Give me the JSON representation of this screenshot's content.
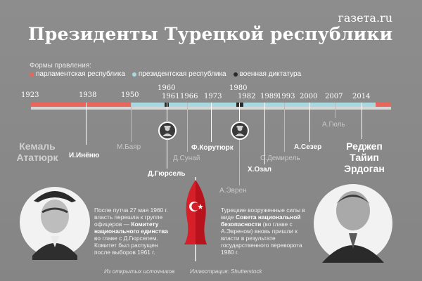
{
  "brand": "газета.ru",
  "title": "Президенты Турецкой республики",
  "legend": {
    "heading": "Формы правления:",
    "items": [
      {
        "label": "парламентская республика",
        "color": "#e8675a"
      },
      {
        "label": "президентская республика",
        "color": "#a8d8e0"
      },
      {
        "label": "военная диктатура",
        "color": "#2a2a2a"
      }
    ]
  },
  "years": [
    "1923",
    "1938",
    "1950",
    "1960",
    "1961",
    "1966",
    "1973",
    "1980",
    "1982",
    "1989",
    "1993",
    "2000",
    "2007",
    "2014"
  ],
  "presidents": {
    "ataturk": "Кемаль Ататюрк",
    "inonu": "И.Инёню",
    "bayar": "М.Баяр",
    "gursel": "Д.Гюрсель",
    "sunay": "Д.Сунай",
    "koruturk": "Ф.Корутюрк",
    "evren": "А.Эврен",
    "ozal": "Х.Озал",
    "demirel": "С.Демирель",
    "sezer": "А.Сезер",
    "gul": "А.Гюль",
    "erdogan": "Реджеп Тайип Эрдоган"
  },
  "notes": {
    "n1960_a": "После путча 27 мая 1960 г. власть перешла к группе офицеров — ",
    "n1960_b": "Комитету национального единства",
    "n1960_c": " во главе с Д.Гюрселем. Комитет был распущен после выборов 1961 г.",
    "n1980_a": "Турецкие вооруженные силы в виде ",
    "n1980_b": "Совета национальной безопасности",
    "n1980_c": " (во главе с А.Эвреном) вновь пришли к власти в результате государственного переворота 1980 г."
  },
  "credits": {
    "source": "Из открытых источников",
    "illustration": "Иллюстрация: Shutterstock"
  }
}
